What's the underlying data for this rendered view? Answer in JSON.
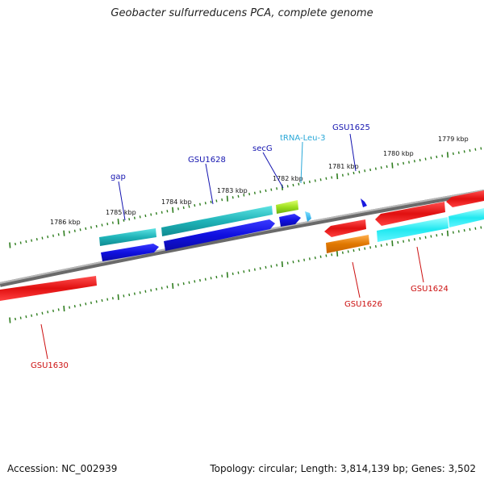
{
  "title": "Geobacter sulfurreducens PCA, complete genome",
  "footer": {
    "accession": "Accession: NC_002939",
    "summary": "Topology: circular; Length: 3,814,139 bp; Genes: 3,502"
  },
  "colors": {
    "backbone": "#8a8a8a",
    "tick": "#2e7d1e",
    "label_blue": "#1515b0",
    "label_red": "#cc1010",
    "label_cyan": "#2aa8d8"
  },
  "ticks": [
    {
      "label": "1786 kbp"
    },
    {
      "label": "1785 kbp"
    },
    {
      "label": "1784 kbp"
    },
    {
      "label": "1783 kbp"
    },
    {
      "label": "1782 kbp"
    },
    {
      "label": "1781 kbp"
    },
    {
      "label": "1780 kbp"
    },
    {
      "label": "1779 kbp"
    }
  ],
  "genes": [
    {
      "name": "gap",
      "color": "blue"
    },
    {
      "name": "GSU1628",
      "color": "blue"
    },
    {
      "name": "secG",
      "color": "blue"
    },
    {
      "name": "tRNA-Leu-3",
      "color": "cyan"
    },
    {
      "name": "GSU1625",
      "color": "blue"
    },
    {
      "name": "GSU1630",
      "color": "red"
    },
    {
      "name": "GSU1626",
      "color": "red"
    },
    {
      "name": "GSU1624",
      "color": "red"
    }
  ]
}
